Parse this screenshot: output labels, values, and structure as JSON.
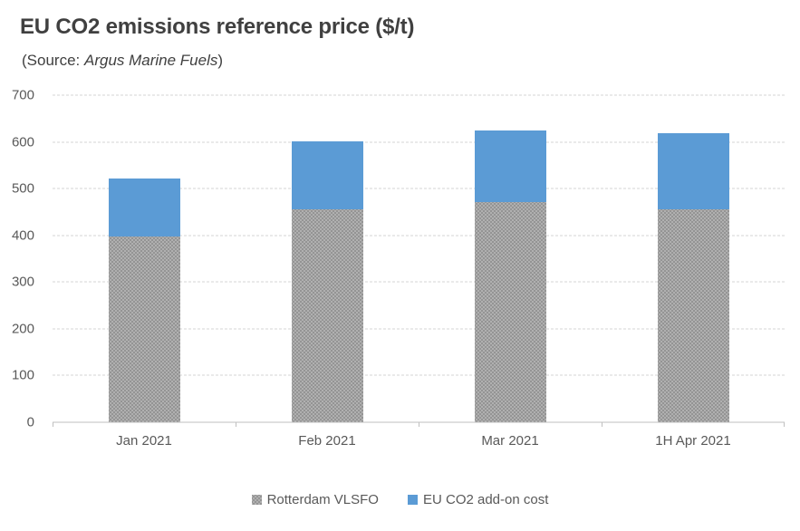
{
  "header": {
    "title": "EU CO2 emissions reference price ($/t)",
    "subtitle_prefix": "(Source: ",
    "subtitle_source": "Argus Marine Fuels",
    "subtitle_suffix": ")"
  },
  "chart_data": {
    "type": "bar",
    "stacked": true,
    "title": "EU CO2 emissions reference price ($/t)",
    "subtitle": "(Source: Argus Marine Fuels)",
    "categories": [
      "Jan 2021",
      "Feb 2021",
      "Mar 2021",
      "1H Apr 2021"
    ],
    "series": [
      {
        "name": "Rotterdam VLSFO",
        "color": "#b0b0b0",
        "values": [
          397,
          456,
          472,
          455
        ]
      },
      {
        "name": "EU CO2 add-on cost",
        "color": "#5b9bd5",
        "values": [
          125,
          145,
          152,
          164
        ]
      }
    ],
    "stack_totals": [
      522,
      601,
      624,
      619
    ],
    "xlabel": "",
    "ylabel": "",
    "ylim": [
      0,
      700
    ],
    "yticks": [
      0,
      100,
      200,
      300,
      400,
      500,
      600,
      700
    ],
    "grid": true,
    "legend_position": "bottom"
  },
  "colors": {
    "title_text": "#404040",
    "axis_text": "#595959",
    "gridline": "#d4d4d4",
    "axis_line": "#bfbfbf",
    "series_gray": "#b0b0b0",
    "series_blue": "#5b9bd5",
    "background": "#ffffff"
  }
}
